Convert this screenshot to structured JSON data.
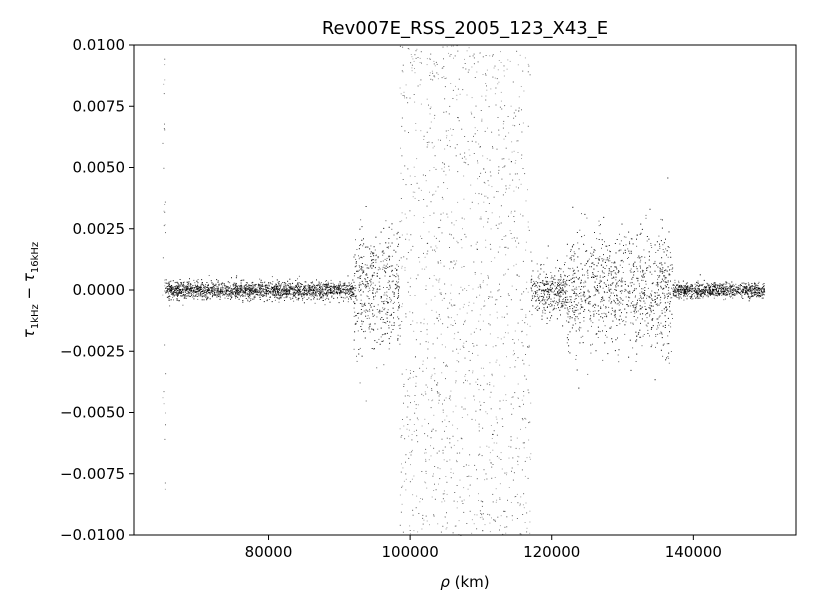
{
  "chart_data": {
    "type": "scatter",
    "title": "Rev007E_RSS_2005_123_X43_E",
    "xlabel": {
      "symbol": "ρ",
      "unit": " (km)"
    },
    "ylabel": {
      "tau": "τ",
      "sub1": "1kHz",
      "minus": " − ",
      "sub2": "16kHz"
    },
    "xlim": [
      61000,
      154500
    ],
    "ylim": [
      -0.01,
      0.01
    ],
    "x_ticks": [
      {
        "value": 80000,
        "label": "80000"
      },
      {
        "value": 100000,
        "label": "100000"
      },
      {
        "value": 120000,
        "label": "120000"
      },
      {
        "value": 140000,
        "label": "140000"
      }
    ],
    "y_ticks": [
      {
        "value": 0.01,
        "label": "0.0100"
      },
      {
        "value": 0.0075,
        "label": "0.0075"
      },
      {
        "value": 0.005,
        "label": "0.0050"
      },
      {
        "value": 0.0025,
        "label": "0.0025"
      },
      {
        "value": 0.0,
        "label": "0.0000"
      },
      {
        "value": -0.0025,
        "label": "−0.0025"
      },
      {
        "value": -0.005,
        "label": "−0.0050"
      },
      {
        "value": -0.0075,
        "label": "−0.0075"
      },
      {
        "value": -0.01,
        "label": "−0.0100"
      }
    ],
    "grid": false,
    "legend": "none",
    "marker_color": "#000000",
    "x_range_of_data": [
      65000,
      150000
    ],
    "noise_profile": [
      {
        "x_start": 65000,
        "x_end": 65400,
        "spread": 0.01
      },
      {
        "x_start": 65400,
        "x_end": 92000,
        "spread": 0.0003
      },
      {
        "x_start": 92000,
        "x_end": 98500,
        "spread": 0.002
      },
      {
        "x_start": 98500,
        "x_end": 117000,
        "spread": 0.01
      },
      {
        "x_start": 117000,
        "x_end": 122000,
        "spread": 0.0008
      },
      {
        "x_start": 122000,
        "x_end": 137000,
        "spread": 0.002
      },
      {
        "x_start": 137000,
        "x_end": 150000,
        "spread": 0.00025
      }
    ]
  }
}
